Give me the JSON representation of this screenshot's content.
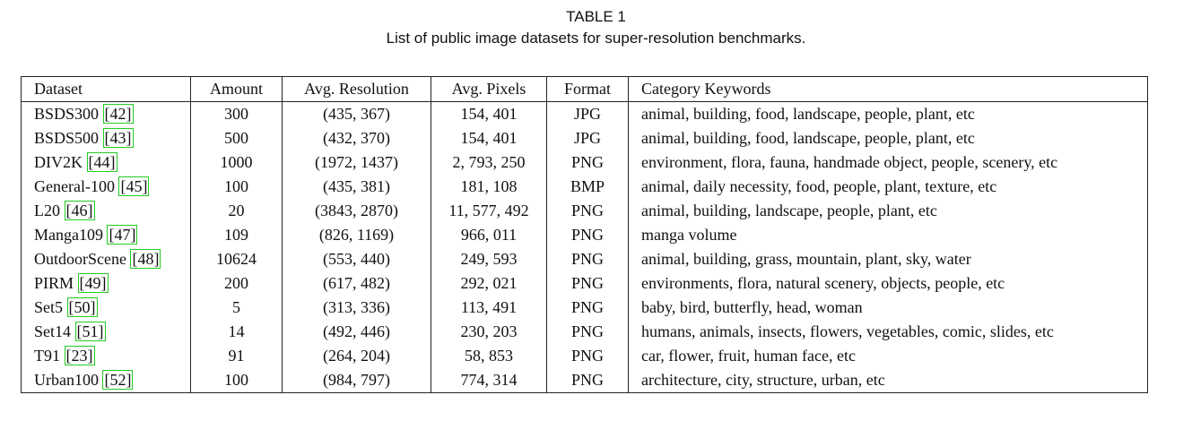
{
  "caption": {
    "label": "TABLE 1",
    "title": "List of public image datasets for super-resolution benchmarks."
  },
  "table": {
    "header": [
      "Dataset",
      "Amount",
      "Avg. Resolution",
      "Avg. Pixels",
      "Format",
      "Category Keywords"
    ],
    "rows": [
      [
        {
          "name": "BSDS300",
          "ref": "[42]"
        },
        300,
        "(435, 367)",
        "154, 401",
        "JPG",
        "animal, building, food, landscape, people, plant, etc"
      ],
      [
        {
          "name": "BSDS500",
          "ref": "[43]"
        },
        500,
        "(432, 370)",
        "154, 401",
        "JPG",
        "animal, building, food, landscape, people, plant, etc"
      ],
      [
        {
          "name": "DIV2K",
          "ref": "[44]"
        },
        1000,
        "(1972, 1437)",
        "2, 793, 250",
        "PNG",
        "environment, flora, fauna, handmade object, people, scenery, etc"
      ],
      [
        {
          "name": "General-100",
          "ref": "[45]"
        },
        100,
        "(435, 381)",
        "181, 108",
        "BMP",
        "animal, daily necessity, food, people, plant, texture, etc"
      ],
      [
        {
          "name": "L20",
          "ref": "[46]"
        },
        20,
        "(3843, 2870)",
        "11, 577, 492",
        "PNG",
        "animal, building, landscape, people, plant, etc"
      ],
      [
        {
          "name": "Manga109",
          "ref": "[47]"
        },
        109,
        "(826, 1169)",
        "966, 011",
        "PNG",
        "manga volume"
      ],
      [
        {
          "name": "OutdoorScene",
          "ref": "[48]"
        },
        10624,
        "(553, 440)",
        "249, 593",
        "PNG",
        "animal, building, grass, mountain, plant, sky, water"
      ],
      [
        {
          "name": "PIRM",
          "ref": "[49]"
        },
        200,
        "(617, 482)",
        "292, 021",
        "PNG",
        "environments, flora, natural scenery, objects, people, etc"
      ],
      [
        {
          "name": "Set5",
          "ref": "[50]"
        },
        5,
        "(313, 336)",
        "113, 491",
        "PNG",
        "baby, bird, butterfly, head, woman"
      ],
      [
        {
          "name": "Set14",
          "ref": "[51]"
        },
        14,
        "(492, 446)",
        "230, 203",
        "PNG",
        "humans, animals, insects, flowers, vegetables, comic, slides, etc"
      ],
      [
        {
          "name": "T91",
          "ref": "[23]"
        },
        91,
        "(264, 204)",
        "58, 853",
        "PNG",
        "car, flower, fruit, human face, etc"
      ],
      [
        {
          "name": "Urban100",
          "ref": "[52]"
        },
        100,
        "(984, 797)",
        "774, 314",
        "PNG",
        "architecture, city, structure, urban, etc"
      ]
    ]
  }
}
